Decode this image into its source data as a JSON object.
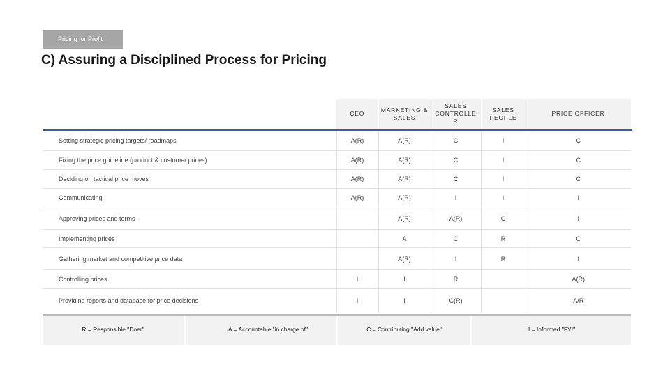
{
  "tag": "Pricing for Profit",
  "title": "C) Assuring a Disciplined Process for Pricing",
  "matrix": {
    "columns": [
      "CEO",
      "MARKETING & SALES",
      "SALES CONTROLLE R",
      "SALES PEOPLE",
      "PRICE OFFICER"
    ],
    "rows": [
      {
        "task": "Setting strategic pricing targets/ roadmaps",
        "cells": [
          "A(R)",
          "A(R)",
          "C",
          "I",
          "C"
        ]
      },
      {
        "task": "Fixing the price guideline (product & customer prices)",
        "cells": [
          "A(R)",
          "A(R)",
          "C",
          "I",
          "C"
        ]
      },
      {
        "task": "Deciding on tactical price moves",
        "cells": [
          "A(R)",
          "A(R)",
          "C",
          "I",
          "C"
        ]
      },
      {
        "task": "Communicating",
        "cells": [
          "A(R)",
          "A(R)",
          "I",
          "I",
          "I"
        ]
      },
      {
        "task": "Approving prices and terms",
        "cells": [
          "",
          "A(R)",
          "A(R)",
          "C",
          "I"
        ]
      },
      {
        "task": "Implementing prices",
        "cells": [
          "",
          "A",
          "C",
          "R",
          "C"
        ]
      },
      {
        "task": "Gathering market and competitive price data",
        "cells": [
          "",
          "A(R)",
          "I",
          "R",
          "I"
        ]
      },
      {
        "task": "Controlling prices",
        "cells": [
          "I",
          "I",
          "R",
          "",
          "A(R)"
        ]
      },
      {
        "task": "Providing reports and database for price decisions",
        "cells": [
          "I",
          "I",
          "C(R)",
          "",
          "A/R"
        ]
      }
    ]
  },
  "legend": {
    "r": "R = Responsible \"Doer\"",
    "a": "A = Accountable \"in charge of\"",
    "c": "C = Contributing \"Add value\"",
    "i": "I = Informed \"FYI\""
  }
}
